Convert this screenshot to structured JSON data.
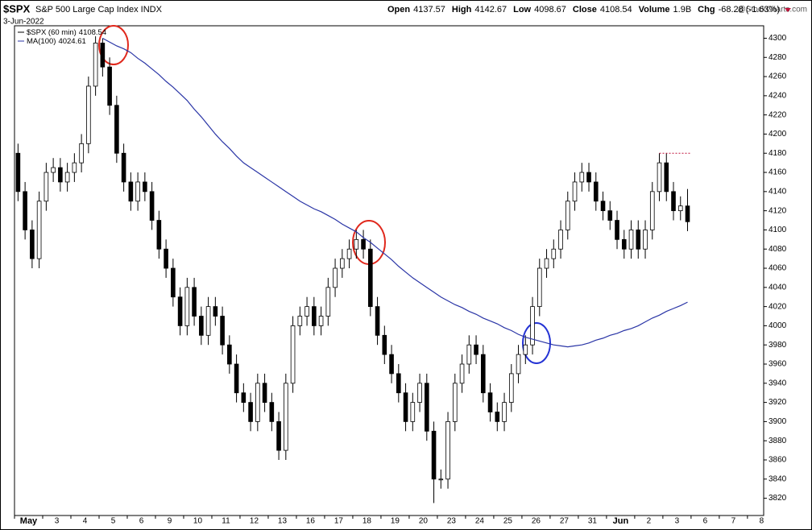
{
  "chart_data": {
    "type": "candlestick",
    "symbol": "$SPX",
    "title": "S&P 500 Large Cap Index INDX",
    "date": "3-Jun-2022",
    "watermark": "@StockCharts.com",
    "stats": [
      {
        "label": "Open",
        "text": "4137.57"
      },
      {
        "label": "High",
        "text": "4142.67"
      },
      {
        "label": "Low",
        "text": "4098.67"
      },
      {
        "label": "Close",
        "text": "4108.54"
      },
      {
        "label": "Volume",
        "text": "1.9B"
      },
      {
        "label": "Chg",
        "text": "-68.28 (-1.63%)"
      }
    ],
    "legend": [
      {
        "name": "$SPX (60 min)",
        "text": "4108.54",
        "color": "#000000"
      },
      {
        "name": "MA(100)",
        "text": "4024.61",
        "color": "#2a35a6"
      }
    ],
    "open": [
      4180,
      4140,
      4100,
      4070,
      4130,
      4160,
      4165,
      4150,
      4160,
      4170,
      4190,
      4250,
      4295,
      4270,
      4230,
      4180,
      4150,
      4130,
      4150,
      4140,
      4110,
      4080,
      4060,
      4030,
      4000,
      4040,
      4010,
      3990,
      4020,
      4010,
      3980,
      3960,
      3930,
      3920,
      3900,
      3940,
      3920,
      3900,
      3870,
      3940,
      4000,
      4010,
      4020,
      4000,
      4010,
      4040,
      4060,
      4070,
      4080,
      4090,
      4080,
      4020,
      3990,
      3970,
      3950,
      3930,
      3900,
      3920,
      3940,
      3890,
      3840,
      3840,
      3900,
      3940,
      3960,
      3980,
      3970,
      3930,
      3910,
      3900,
      3920,
      3950,
      3970,
      3980,
      4020,
      4060,
      4070,
      4080,
      4100,
      4130,
      4150,
      4160,
      4150,
      4130,
      4120,
      4110,
      4090,
      4080,
      4100,
      4080,
      4100,
      4140,
      4170,
      4140,
      4120,
      4125
    ],
    "high": [
      4190,
      4150,
      4110,
      4140,
      4170,
      4175,
      4175,
      4170,
      4180,
      4200,
      4260,
      4302,
      4300,
      4280,
      4240,
      4190,
      4160,
      4160,
      4160,
      4150,
      4120,
      4090,
      4070,
      4040,
      4050,
      4050,
      4020,
      4030,
      4030,
      4020,
      3990,
      3970,
      3940,
      3930,
      3950,
      3950,
      3930,
      3910,
      3950,
      4010,
      4020,
      4030,
      4030,
      4020,
      4050,
      4070,
      4080,
      4090,
      4100,
      4100,
      4090,
      4030,
      4000,
      3980,
      3960,
      3940,
      3930,
      3950,
      3950,
      3900,
      3850,
      3910,
      3950,
      3970,
      3990,
      3990,
      3980,
      3940,
      3920,
      3930,
      3960,
      3980,
      3990,
      4030,
      4070,
      4080,
      4090,
      4110,
      4140,
      4160,
      4170,
      4170,
      4160,
      4140,
      4130,
      4120,
      4100,
      4110,
      4110,
      4110,
      4150,
      4180,
      4180,
      4150,
      4135,
      4142.67
    ],
    "low": [
      4130,
      4090,
      4060,
      4060,
      4120,
      4150,
      4140,
      4140,
      4150,
      4160,
      4180,
      4240,
      4260,
      4220,
      4170,
      4140,
      4120,
      4120,
      4130,
      4100,
      4070,
      4050,
      4020,
      3990,
      3990,
      4000,
      3980,
      3980,
      4000,
      3970,
      3950,
      3920,
      3910,
      3890,
      3890,
      3910,
      3890,
      3860,
      3860,
      3930,
      3990,
      4000,
      3990,
      3990,
      4000,
      4030,
      4050,
      4060,
      4070,
      4070,
      4010,
      3980,
      3960,
      3940,
      3920,
      3890,
      3890,
      3910,
      3880,
      3815,
      3830,
      3830,
      3890,
      3930,
      3950,
      3960,
      3920,
      3900,
      3890,
      3890,
      3910,
      3940,
      3960,
      3970,
      4010,
      4050,
      4060,
      4070,
      4090,
      4120,
      4140,
      4140,
      4120,
      4110,
      4100,
      4080,
      4070,
      4070,
      4070,
      4070,
      4090,
      4130,
      4130,
      4110,
      4110,
      4098.67
    ],
    "close": [
      4140,
      4100,
      4070,
      4130,
      4160,
      4165,
      4150,
      4160,
      4170,
      4190,
      4250,
      4295,
      4270,
      4230,
      4180,
      4150,
      4130,
      4150,
      4140,
      4110,
      4080,
      4060,
      4030,
      4000,
      4040,
      4010,
      3990,
      4020,
      4010,
      3980,
      3960,
      3930,
      3920,
      3900,
      3940,
      3920,
      3900,
      3870,
      3940,
      4000,
      4010,
      4020,
      4000,
      4010,
      4040,
      4060,
      4070,
      4080,
      4090,
      4080,
      4020,
      3990,
      3970,
      3950,
      3930,
      3900,
      3920,
      3940,
      3890,
      3840,
      3840,
      3900,
      3940,
      3960,
      3980,
      3970,
      3930,
      3910,
      3900,
      3920,
      3950,
      3970,
      3980,
      4020,
      4060,
      4070,
      4080,
      4100,
      4130,
      4150,
      4160,
      4150,
      4130,
      4120,
      4110,
      4090,
      4080,
      4100,
      4080,
      4100,
      4140,
      4170,
      4140,
      4120,
      4125,
      4108.54
    ],
    "ma": [
      null,
      null,
      null,
      null,
      null,
      null,
      null,
      null,
      null,
      null,
      null,
      null,
      4300,
      4296,
      4292,
      4289,
      4285,
      4279,
      4274,
      4268,
      4262,
      4255,
      4249,
      4242,
      4235,
      4226,
      4218,
      4209,
      4200,
      4192,
      4185,
      4177,
      4170,
      4165,
      4160,
      4155,
      4150,
      4145,
      4140,
      4135,
      4130,
      4126,
      4122,
      4119,
      4115,
      4111,
      4106,
      4102,
      4098,
      4092,
      4087,
      4081,
      4075,
      4069,
      4062,
      4056,
      4050,
      4045,
      4040,
      4035,
      4030,
      4026,
      4022,
      4019,
      4015,
      4012,
      4008,
      4005,
      4002,
      3998,
      3995,
      3991,
      3988,
      3986,
      3984,
      3982,
      3980,
      3979,
      3978,
      3979,
      3980,
      3982,
      3985,
      3987,
      3990,
      3992,
      3995,
      3997,
      4000,
      4004,
      4008,
      4011,
      4015,
      4018,
      4021,
      4024.61
    ],
    "ref_line": 4180,
    "xlim": [
      0,
      106.3
    ],
    "xticks": [
      {
        "value": 0,
        "label": "May"
      },
      {
        "value": 4,
        "label": "3"
      },
      {
        "value": 8,
        "label": "4"
      },
      {
        "value": 12,
        "label": "5"
      },
      {
        "value": 16,
        "label": "6"
      },
      {
        "value": 20,
        "label": "9"
      },
      {
        "value": 24,
        "label": "10"
      },
      {
        "value": 28,
        "label": "11"
      },
      {
        "value": 32,
        "label": "12"
      },
      {
        "value": 36,
        "label": "13"
      },
      {
        "value": 40,
        "label": "16"
      },
      {
        "value": 44,
        "label": "17"
      },
      {
        "value": 48,
        "label": "18"
      },
      {
        "value": 52,
        "label": "19"
      },
      {
        "value": 56,
        "label": "20"
      },
      {
        "value": 60,
        "label": "23"
      },
      {
        "value": 64,
        "label": "24"
      },
      {
        "value": 68,
        "label": "25"
      },
      {
        "value": 72,
        "label": "26"
      },
      {
        "value": 76,
        "label": "27"
      },
      {
        "value": 80,
        "label": "31"
      },
      {
        "value": 84,
        "label": "Jun"
      },
      {
        "value": 88,
        "label": "2"
      },
      {
        "value": 92,
        "label": "3"
      },
      {
        "value": 96,
        "label": "6"
      },
      {
        "value": 100,
        "label": "7"
      },
      {
        "value": 104,
        "label": "8"
      }
    ],
    "ylim": [
      3802,
      4313
    ],
    "yticks": [
      3820,
      3840,
      3860,
      3880,
      3900,
      3920,
      3940,
      3960,
      3980,
      4000,
      4020,
      4040,
      4060,
      4080,
      4100,
      4120,
      4140,
      4160,
      4180,
      4200,
      4220,
      4240,
      4260,
      4280,
      4300
    ]
  }
}
